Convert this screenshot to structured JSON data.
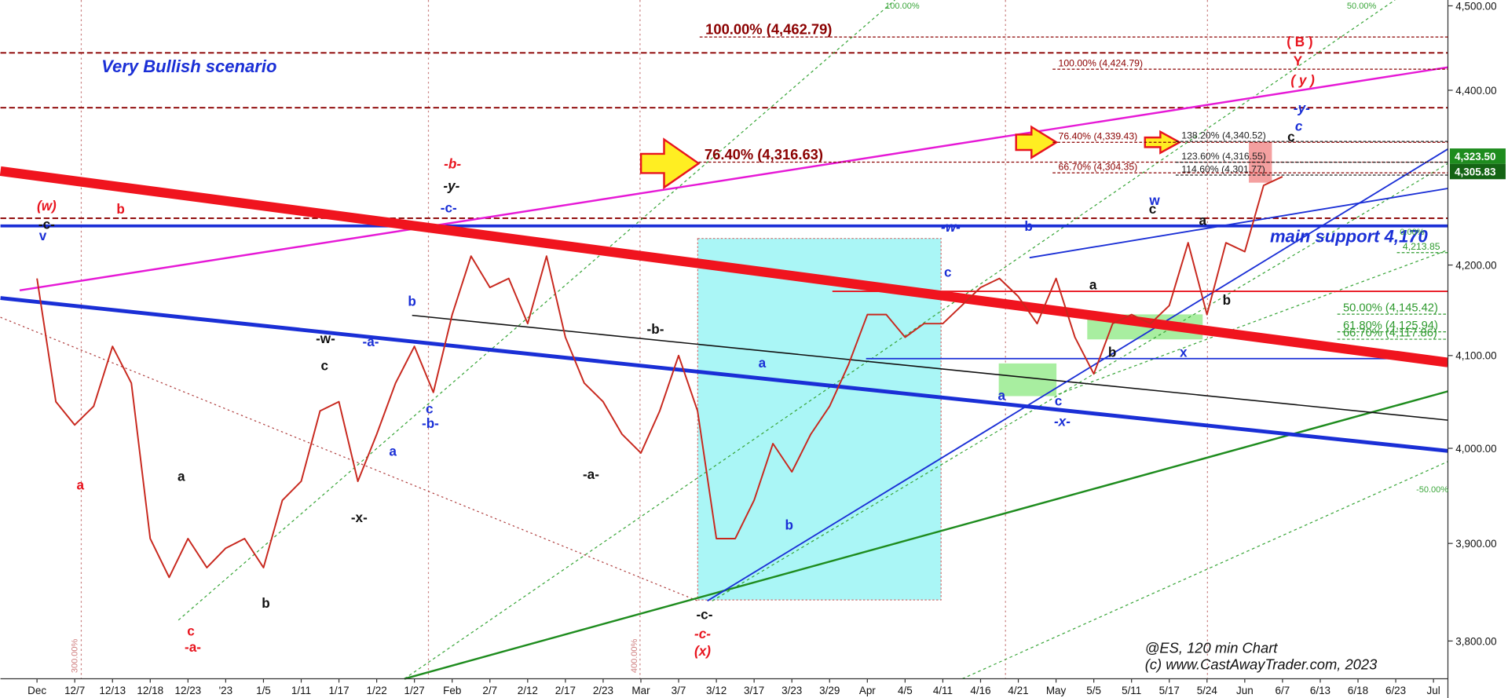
{
  "chart_data": {
    "type": "line",
    "title": "Very Bullish scenario",
    "support_text": "main support 4,170",
    "footer": [
      "@ES, 120 min Chart",
      "(c) www.CastAwayTrader.com, 2023"
    ],
    "log_scale": true,
    "color": "#c8281e",
    "categories": [
      "Dec",
      null,
      "12/7",
      null,
      "12/13",
      null,
      "12/18",
      null,
      "12/23",
      null,
      "'23",
      null,
      "1/5",
      null,
      "1/11",
      null,
      "1/17",
      null,
      "1/22",
      null,
      "1/27",
      null,
      "Feb",
      null,
      "2/7",
      null,
      "2/12",
      null,
      "2/17",
      null,
      "2/23",
      null,
      "Mar",
      null,
      "3/7",
      null,
      "3/12",
      null,
      "3/17",
      null,
      "3/23",
      null,
      "3/29",
      null,
      "Apr",
      null,
      "4/5",
      null,
      "4/11",
      null,
      "4/16",
      null,
      "4/21",
      null,
      "May",
      null,
      "5/5",
      null,
      "5/11",
      null,
      "5/17",
      null,
      "5/24",
      null,
      "Jun",
      null,
      "6/7",
      null,
      "6/13",
      null,
      "6/18",
      null,
      "6/23",
      null,
      "Jul"
    ],
    "values": [
      4185,
      4050,
      4025,
      4045,
      4110,
      4070,
      3905,
      3865,
      3905,
      3875,
      3895,
      3905,
      3875,
      3945,
      3965,
      4040,
      4050,
      3965,
      4015,
      4070,
      4110,
      4060,
      4145,
      4210,
      4175,
      4185,
      4135,
      4210,
      4120,
      4070,
      4050,
      4015,
      3995,
      4040,
      4100,
      4040,
      3905,
      3905,
      3945,
      4005,
      3975,
      4015,
      4045,
      4090,
      4145,
      4145,
      4120,
      4135,
      4135,
      4155,
      4175,
      4185,
      4165,
      4135,
      4185,
      4120,
      4080,
      4135,
      4145,
      4135,
      4155,
      4225,
      4145,
      4225,
      4215,
      4290,
      4300,
      null,
      null,
      null,
      null,
      null,
      null,
      null,
      null
    ],
    "ylim": [
      3762,
      4507
    ],
    "yticks": [
      {
        "value": 4500,
        "label": "4,500.00"
      },
      {
        "value": 4400,
        "label": "4,400.00"
      },
      {
        "value": 4200,
        "label": "4,200.00"
      },
      {
        "value": 4100,
        "label": "4,100.00"
      },
      {
        "value": 4000,
        "label": "4,000.00"
      },
      {
        "value": 3900,
        "label": "3,900.00"
      },
      {
        "value": 3800,
        "label": "3,800.00"
      }
    ],
    "levels": [
      {
        "value": 4462.79,
        "label": "100.00% (4,462.79)",
        "color": "#8b0000"
      },
      {
        "value": 4424.79,
        "label": "100.00% (4,424.79)",
        "color": "#8b0000"
      },
      {
        "value": 4316.63,
        "label": "76.40% (4,316.63)",
        "color": "#8b0000"
      },
      {
        "value": 4339.43,
        "label": "76.40% (4,339.43)",
        "color": "#8b0000"
      },
      {
        "value": 4340.52,
        "label": "138.20% (4,340.52)",
        "color": "#222222"
      },
      {
        "value": 4316.55,
        "label": "123.60% (4,316.55)",
        "color": "#222222"
      },
      {
        "value": 4304.35,
        "label": "66.70% (4,304.35)",
        "color": "#8b0000"
      },
      {
        "value": 4301.77,
        "label": "114.60% (4,301.77)",
        "color": "#222222"
      },
      {
        "value": 4213.85,
        "label": "4,213.85",
        "color": "#2e9a2e"
      },
      {
        "value": 4145.42,
        "label": "50.00% (4,145.42)",
        "color": "#2e9a2e"
      },
      {
        "value": 4125.94,
        "label": "61.80% (4,125.94)",
        "color": "#2e9a2e"
      },
      {
        "value": 4117.86,
        "label": "66.70% (4,117.86)",
        "color": "#2e9a2e"
      }
    ],
    "price_badges": [
      {
        "value": 4323.5,
        "label": "4,323.50",
        "color": "#1e8c1e"
      },
      {
        "value": 4305.83,
        "label": "4,305.83",
        "color": "#146414"
      }
    ],
    "fib_grid_labels": [
      "300.00%",
      "400.00%",
      "100.00%",
      "50.00%",
      "0.00%",
      "-50.00%"
    ],
    "wave_labels": [
      "(w)",
      "-c-",
      "v",
      "b",
      "a",
      "c",
      "-a-",
      "a",
      "b",
      "-x-",
      "c",
      "-w-",
      "-a-",
      "b",
      "a",
      "c",
      "-b-",
      "-b-",
      "-y-",
      "-c-",
      "-a-",
      "-b-",
      "-c-",
      "-c-",
      "(x)",
      "a",
      "b",
      "-w-",
      "c",
      "b",
      "a",
      "c",
      "-x-",
      "a",
      "b",
      "w",
      "c",
      "x",
      "a",
      "b",
      "c",
      "c",
      "-y-",
      "( y )",
      "Y",
      "( B )"
    ]
  }
}
